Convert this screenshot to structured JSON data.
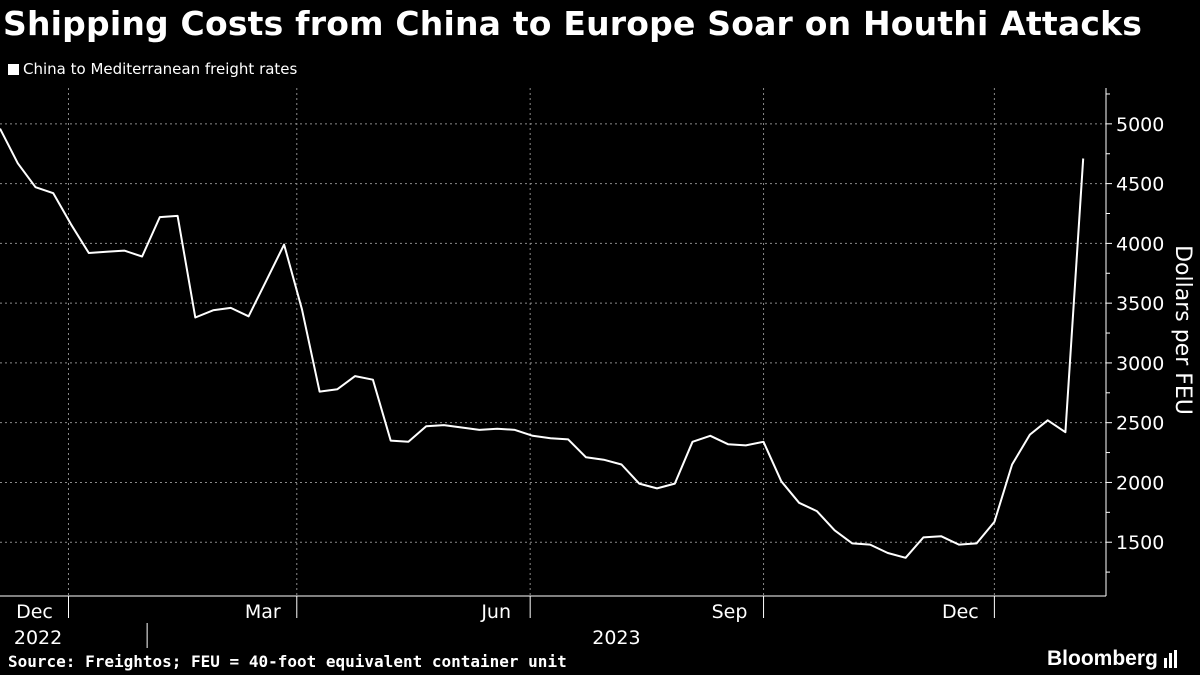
{
  "title": "Shipping Costs from China to Europe Soar on Houthi Attacks",
  "source": "Source: Freightos; FEU = 40-foot equivalent container unit",
  "brand": "Bloomberg",
  "logo_icon": "bloomberg-bars-icon",
  "colors": {
    "background": "#000000",
    "line": "#ffffff",
    "grid": "#8a8a8a",
    "text": "#ffffff"
  },
  "chart_data": {
    "type": "line",
    "title": "Shipping Costs from China to Europe Soar on Houthi Attacks",
    "ylabel": "Dollars per FEU",
    "xlabel": "",
    "ylim": [
      1050,
      5300
    ],
    "xlim": [
      "2022-11-04",
      "2024-01-14"
    ],
    "yticks": [
      1500,
      2000,
      2500,
      3000,
      3500,
      4000,
      4500,
      5000
    ],
    "xticks": [
      {
        "label": "Dec",
        "date": "2022-12-01"
      },
      {
        "label": "Mar",
        "date": "2023-03-01"
      },
      {
        "label": "Jun",
        "date": "2023-06-01"
      },
      {
        "label": "Sep",
        "date": "2023-09-01"
      },
      {
        "label": "Dec",
        "date": "2023-12-01"
      }
    ],
    "year_labels": [
      {
        "label": "2022",
        "date": "2022-11-19"
      },
      {
        "label": "2023",
        "date": "2023-07-05"
      }
    ],
    "grid": true,
    "legend": "top-left",
    "series": [
      {
        "name": "China to Mediterranean freight rates",
        "points": [
          [
            "2022-11-04",
            4960
          ],
          [
            "2022-11-11",
            4670
          ],
          [
            "2022-11-18",
            4470
          ],
          [
            "2022-11-25",
            4420
          ],
          [
            "2022-12-02",
            4160
          ],
          [
            "2022-12-09",
            3920
          ],
          [
            "2022-12-16",
            3930
          ],
          [
            "2022-12-23",
            3940
          ],
          [
            "2022-12-30",
            3890
          ],
          [
            "2023-01-06",
            4220
          ],
          [
            "2023-01-13",
            4230
          ],
          [
            "2023-01-20",
            3380
          ],
          [
            "2023-01-27",
            3440
          ],
          [
            "2023-02-03",
            3460
          ],
          [
            "2023-02-10",
            3390
          ],
          [
            "2023-02-17",
            3690
          ],
          [
            "2023-02-24",
            3990
          ],
          [
            "2023-03-03",
            3450
          ],
          [
            "2023-03-10",
            2760
          ],
          [
            "2023-03-17",
            2780
          ],
          [
            "2023-03-24",
            2890
          ],
          [
            "2023-03-31",
            2860
          ],
          [
            "2023-04-07",
            2350
          ],
          [
            "2023-04-14",
            2340
          ],
          [
            "2023-04-21",
            2470
          ],
          [
            "2023-04-28",
            2480
          ],
          [
            "2023-05-05",
            2460
          ],
          [
            "2023-05-12",
            2440
          ],
          [
            "2023-05-19",
            2450
          ],
          [
            "2023-05-26",
            2440
          ],
          [
            "2023-06-02",
            2390
          ],
          [
            "2023-06-09",
            2370
          ],
          [
            "2023-06-16",
            2360
          ],
          [
            "2023-06-23",
            2210
          ],
          [
            "2023-06-30",
            2190
          ],
          [
            "2023-07-07",
            2150
          ],
          [
            "2023-07-14",
            1990
          ],
          [
            "2023-07-21",
            1950
          ],
          [
            "2023-07-28",
            1990
          ],
          [
            "2023-08-04",
            2340
          ],
          [
            "2023-08-11",
            2390
          ],
          [
            "2023-08-18",
            2320
          ],
          [
            "2023-08-25",
            2310
          ],
          [
            "2023-09-01",
            2340
          ],
          [
            "2023-09-08",
            2010
          ],
          [
            "2023-09-15",
            1830
          ],
          [
            "2023-09-22",
            1760
          ],
          [
            "2023-09-29",
            1600
          ],
          [
            "2023-10-06",
            1490
          ],
          [
            "2023-10-13",
            1480
          ],
          [
            "2023-10-20",
            1410
          ],
          [
            "2023-10-27",
            1370
          ],
          [
            "2023-11-03",
            1540
          ],
          [
            "2023-11-10",
            1550
          ],
          [
            "2023-11-17",
            1480
          ],
          [
            "2023-11-24",
            1490
          ],
          [
            "2023-12-01",
            1670
          ],
          [
            "2023-12-08",
            2150
          ],
          [
            "2023-12-15",
            2400
          ],
          [
            "2023-12-22",
            2520
          ],
          [
            "2023-12-29",
            2420
          ],
          [
            "2024-01-05",
            4710
          ]
        ]
      }
    ]
  }
}
